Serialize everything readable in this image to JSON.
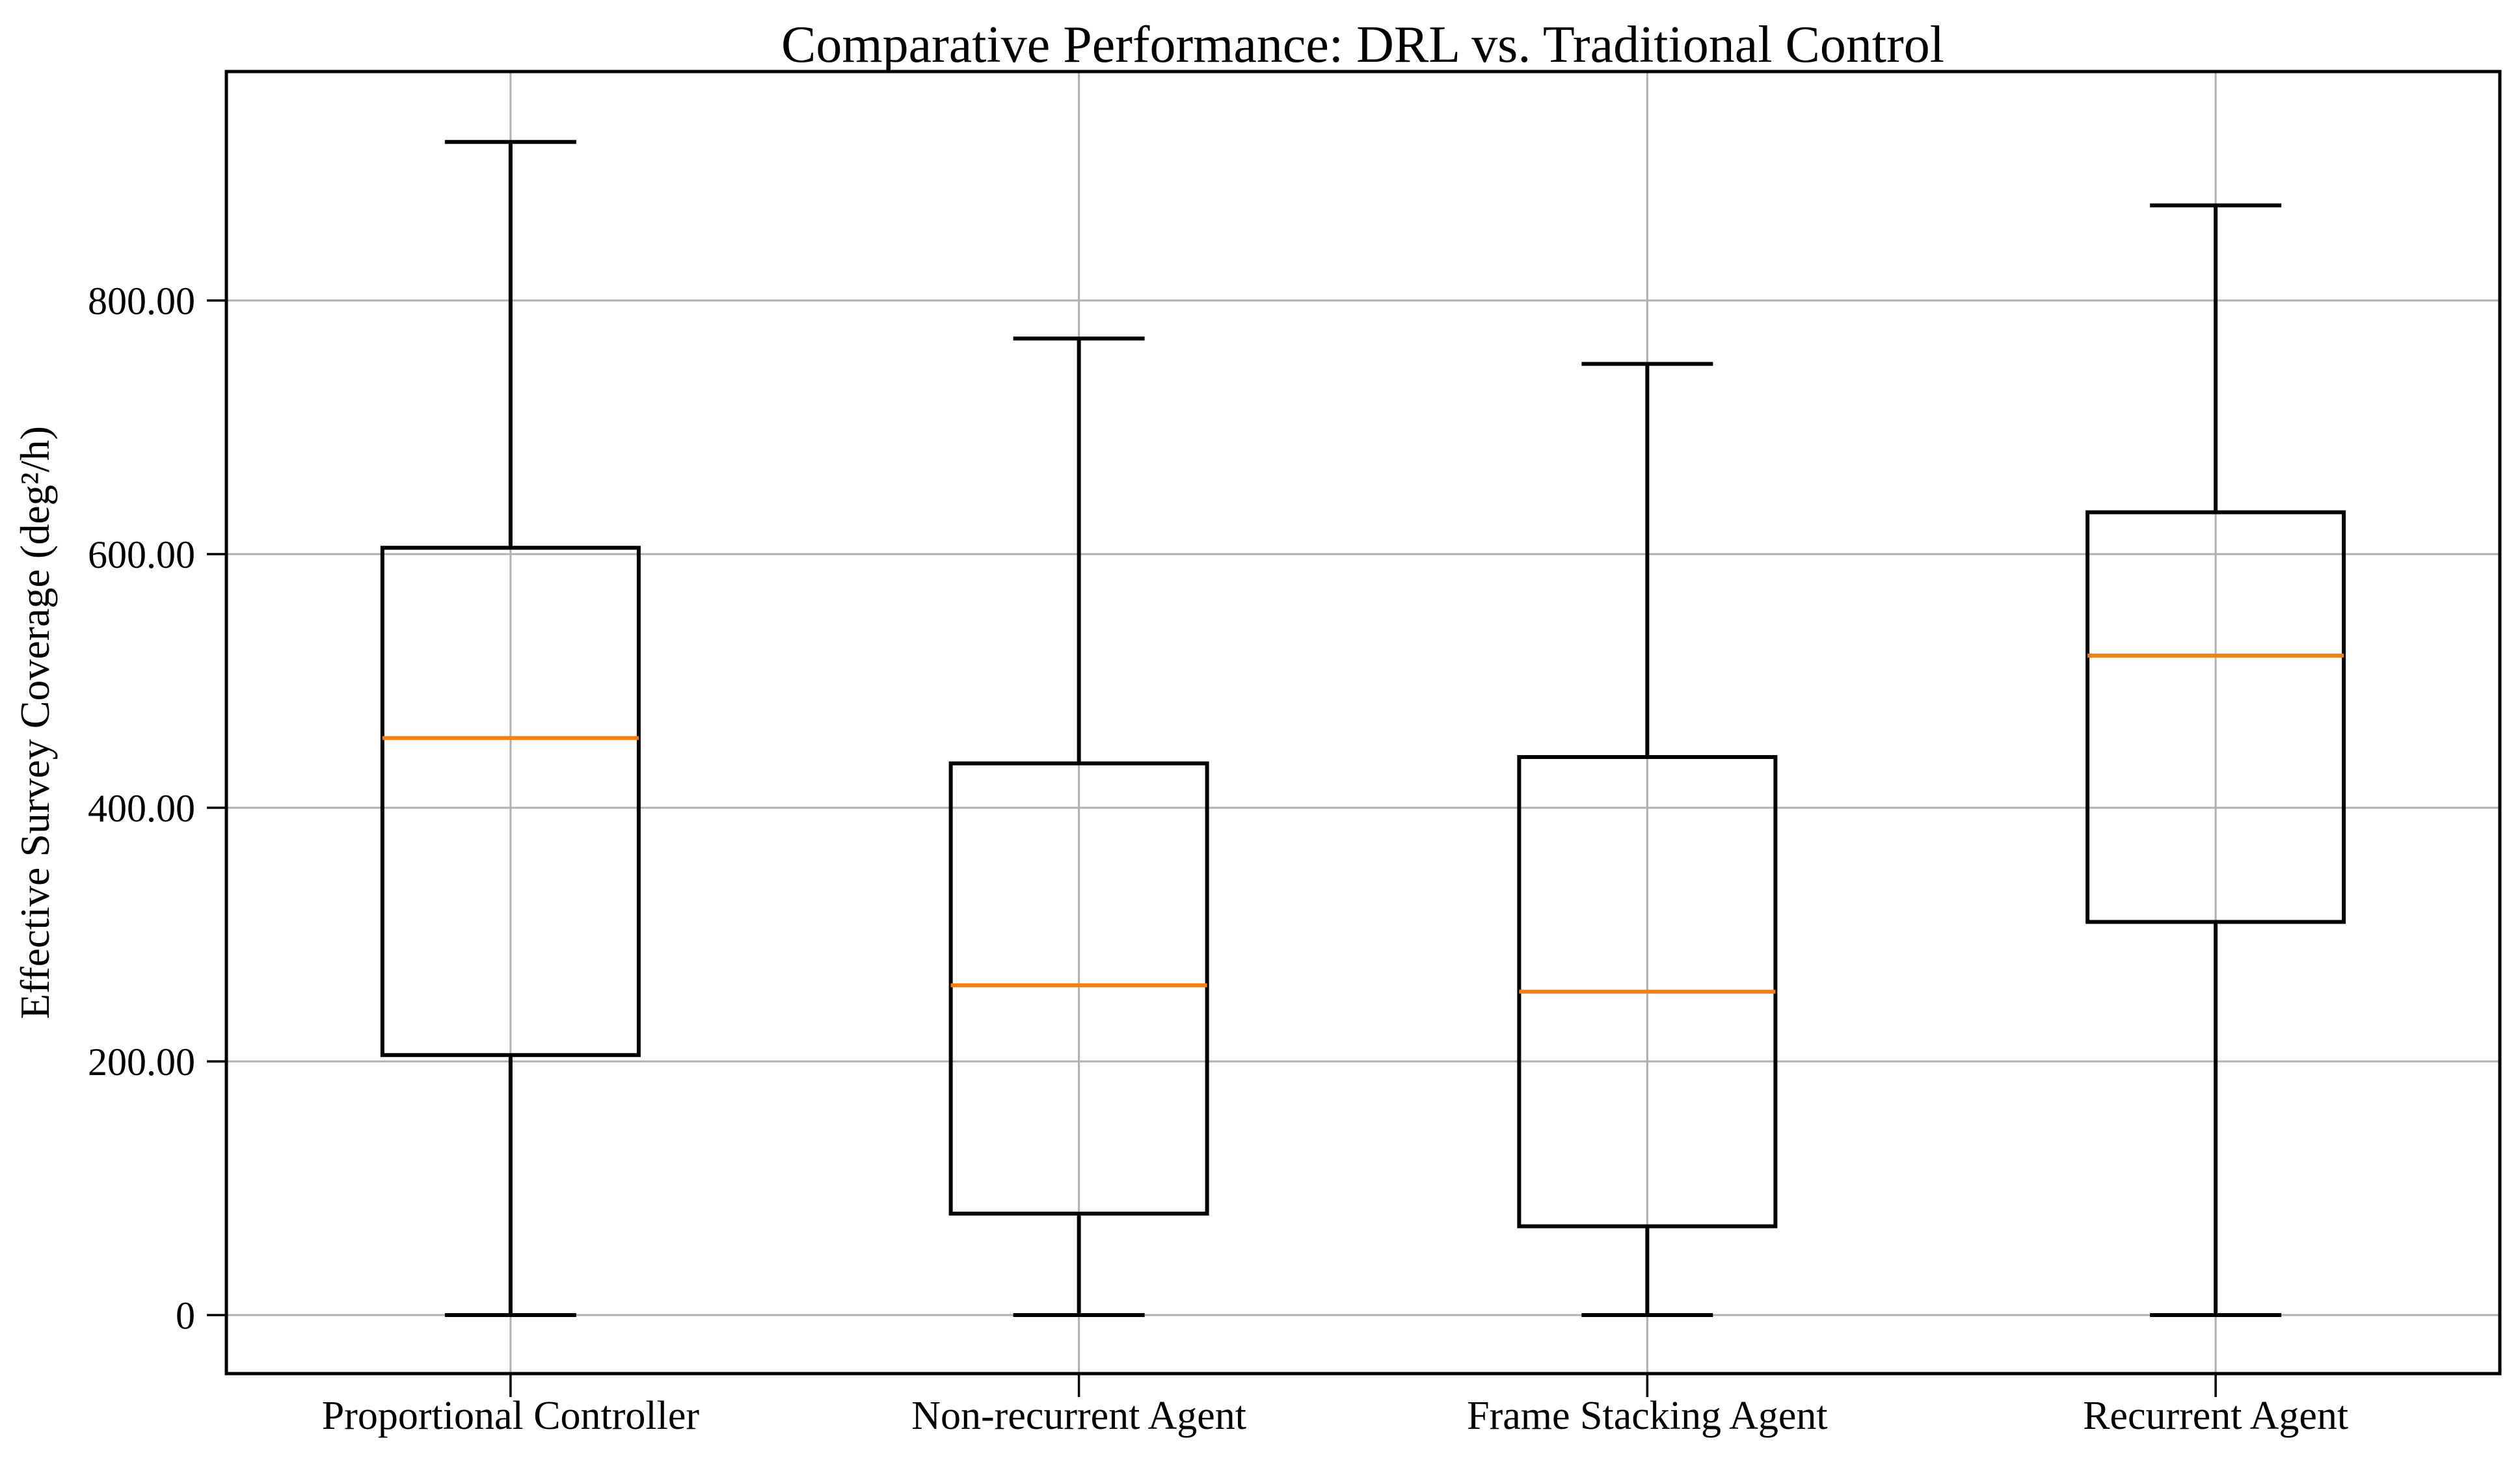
{
  "chart_data": {
    "type": "box",
    "title": "Comparative Performance: DRL vs. Traditional Control",
    "ylabel": "Effective Survey Coverage (deg²/h)",
    "xlabel": "",
    "categories": [
      "Proportional Controller",
      "Non-recurrent Agent",
      "Frame Stacking Agent",
      "Recurrent Agent"
    ],
    "yticks": [
      {
        "value": 0,
        "label": "0"
      },
      {
        "value": 200,
        "label": "200.00"
      },
      {
        "value": 400,
        "label": "400.00"
      },
      {
        "value": 600,
        "label": "600.00"
      },
      {
        "value": 800,
        "label": "800.00"
      }
    ],
    "ylim": [
      -46.3,
      980.6
    ],
    "grid": true,
    "legend_position": "none",
    "boxes": [
      {
        "category": "Proportional Controller",
        "whisker_low": 0,
        "q1": 205,
        "median": 455,
        "q3": 605,
        "whisker_high": 925
      },
      {
        "category": "Non-recurrent Agent",
        "whisker_low": 0,
        "q1": 80,
        "median": 260,
        "q3": 435,
        "whisker_high": 770
      },
      {
        "category": "Frame Stacking Agent",
        "whisker_low": 0,
        "q1": 70,
        "median": 255,
        "q3": 440,
        "whisker_high": 750
      },
      {
        "category": "Recurrent Agent",
        "whisker_low": 0,
        "q1": 310,
        "median": 520,
        "q3": 633,
        "whisker_high": 875
      }
    ],
    "colors": {
      "box_line": "#000000",
      "median_line": "#ff7f0e",
      "grid_line": "#b0b0b0",
      "spine": "#000000",
      "background": "#ffffff"
    }
  }
}
